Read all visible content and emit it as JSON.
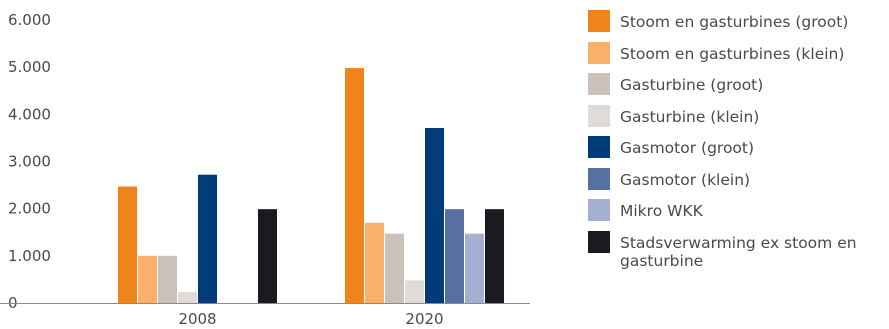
{
  "chart_data": {
    "type": "bar",
    "title": "",
    "xlabel": "",
    "ylabel": "",
    "categories": [
      "2008",
      "2020"
    ],
    "ylim": [
      0,
      6000
    ],
    "y_ticks": [
      0,
      1000,
      2000,
      3000,
      4000,
      5000,
      6000
    ],
    "y_tick_labels": [
      "0",
      "1.000",
      "2.000",
      "3.000",
      "4.000",
      "5.000",
      "6.000"
    ],
    "grid": false,
    "legend_position": "right",
    "series": [
      {
        "name": "Stoom en gasturbines (groot)",
        "color": "#F0841A",
        "values": [
          2470,
          4980
        ]
      },
      {
        "name": "Stoom en gasturbines (klein)",
        "color": "#F8B06A",
        "values": [
          1000,
          1700
        ]
      },
      {
        "name": "Gasturbine (groot)",
        "color": "#CAC2BA",
        "values": [
          1000,
          1470
        ]
      },
      {
        "name": "Gasturbine (klein)",
        "color": "#E0DBD6",
        "values": [
          230,
          480
        ]
      },
      {
        "name": "Gasmotor (groot)",
        "color": "#003B7A",
        "values": [
          2720,
          3710
        ]
      },
      {
        "name": "Gasmotor (klein)",
        "color": "#57709F",
        "values": [
          0,
          1990
        ]
      },
      {
        "name": "Mikro WKK",
        "color": "#A5AED3",
        "values": [
          0,
          1470
        ]
      },
      {
        "name": "Stadsverwarming ex stoom en gasturbine",
        "color": "#1A1A20",
        "values": [
          1990,
          1990
        ]
      }
    ]
  }
}
